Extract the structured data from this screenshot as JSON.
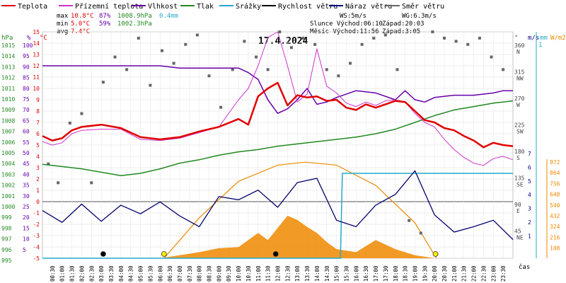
{
  "chart_data": {
    "type": "line",
    "title": "17.4.2024",
    "legend": [
      {
        "name": "Teplota",
        "color": "#e00000"
      },
      {
        "name": "Přízemní teplota",
        "color": "#cc33cc"
      },
      {
        "name": "Vlhkost",
        "color": "#6600aa"
      },
      {
        "name": "Tlak",
        "color": "#228822"
      },
      {
        "name": "Srážky",
        "color": "#22aacc"
      },
      {
        "name": "Rychlost větru",
        "color": "#000000"
      },
      {
        "name": "Náraz větru",
        "color": "#000088"
      },
      {
        "name": "Směr větru",
        "color": "#666666"
      }
    ],
    "stats": {
      "max_label": "max",
      "max_temp": "10.8°C",
      "max_hum": "87%",
      "max_press": "1008.9hPa",
      "rain_total": "0.4mm",
      "min_label": "min",
      "min_temp": "5.0°C",
      "min_hum": "59%",
      "min_press": "1002.3hPa",
      "avg_label": "avg",
      "avg_temp": "7.4°C",
      "ws": "WS:5m/s",
      "wg": "WG:6.3m/s",
      "sun": "Slunce Východ:06:10",
      "sunset": "Západ:20:03",
      "moon": "Měsíc Východ:11:56",
      "moonset": "Západ:3:05"
    },
    "axes": {
      "hpa_label": "hPa",
      "pct_label": "%",
      "degc_label": "°C",
      "deg_label": "°",
      "ms_label": "m/s",
      "mm_label": "mm",
      "wm2_label": "W/m2",
      "x_label": "čas",
      "hpa_ticks": [
        "1015",
        "1014",
        "1013",
        "1012",
        "1011",
        "1010",
        "1009",
        "1008",
        "1007",
        "1006",
        "1005",
        "1004",
        "1003",
        "1002",
        "1001",
        "1000",
        "999",
        "998",
        "997",
        "996",
        "995"
      ],
      "pct_ticks": [
        "100",
        "95",
        "90",
        "85",
        "80",
        "75",
        "70",
        "65",
        "60",
        "55",
        "50",
        "45",
        "40",
        "35",
        "30",
        "25",
        "20",
        "15",
        "10",
        "5"
      ],
      "temp_ticks": [
        "15",
        "14",
        "13",
        "12",
        "11",
        "10",
        "9",
        "8",
        "7",
        "6",
        "5",
        "4",
        "3",
        "2",
        "1",
        "0",
        "-1",
        "-2",
        "-3",
        "-4",
        "-5"
      ],
      "dir_ticks": [
        "360",
        "315",
        "270",
        "225",
        "180",
        "135",
        "90",
        "45"
      ],
      "dir_names": [
        "N",
        "NW",
        "W",
        "SW",
        "S",
        "SE",
        "E",
        "NE"
      ],
      "ms_ticks": [
        "7",
        "6",
        "5",
        "4",
        "3",
        "2",
        "1"
      ],
      "mm_top": "1",
      "wm2_ticks": [
        "972",
        "864",
        "756",
        "648",
        "540",
        "432",
        "324",
        "216",
        "108"
      ],
      "x_ticks": [
        "00:30",
        "01:00",
        "01:30",
        "02:00",
        "02:30",
        "03:00",
        "03:30",
        "04:00",
        "04:30",
        "05:00",
        "05:30",
        "06:00",
        "06:30",
        "07:00",
        "07:30",
        "08:00",
        "08:30",
        "09:00",
        "09:30",
        "10:00",
        "10:30",
        "11:00",
        "11:30",
        "12:00",
        "12:30",
        "13:00",
        "13:30",
        "14:00",
        "14:30",
        "15:00",
        "15:30",
        "16:00",
        "16:30",
        "17:00",
        "17:30",
        "18:00",
        "18:30",
        "19:00",
        "19:30",
        "20:00",
        "20:30",
        "21:00",
        "21:30",
        "22:00",
        "22:30",
        "23:00",
        "23:30"
      ]
    },
    "ylim_temp": [
      -5,
      15
    ],
    "xlim_hours": [
      0,
      24
    ],
    "series": [
      {
        "name": "Teplota",
        "x": [
          0,
          0.5,
          1,
          1.5,
          2,
          3,
          4,
          5,
          6,
          7,
          8,
          9,
          10,
          10.5,
          11,
          11.5,
          12,
          12.5,
          13,
          13.5,
          14,
          14.5,
          15,
          15.5,
          16,
          16.5,
          17,
          17.5,
          18,
          18.5,
          19,
          19.5,
          20,
          20.5,
          21,
          21.5,
          22,
          22.5,
          23,
          23.5,
          24
        ],
        "values": [
          5.8,
          5.4,
          5.6,
          6.3,
          6.6,
          6.8,
          6.5,
          5.7,
          5.5,
          5.7,
          6.2,
          6.6,
          7.3,
          6.8,
          9.3,
          10.0,
          10.5,
          8.5,
          9.4,
          9.2,
          9.3,
          8.9,
          9.0,
          8.3,
          8.1,
          8.6,
          8.3,
          8.6,
          8.9,
          8.8,
          8.0,
          7.2,
          7.0,
          6.5,
          6.3,
          5.8,
          5.4,
          4.8,
          5.2,
          5.0,
          4.9
        ]
      },
      {
        "name": "Přízemní teplota",
        "x": [
          0,
          0.5,
          1,
          1.5,
          2,
          3,
          4,
          5,
          6,
          7,
          8,
          9,
          10,
          10.5,
          11,
          11.5,
          12,
          12.5,
          13,
          13.5,
          14,
          14.5,
          15,
          15.5,
          16,
          16.5,
          17,
          17.5,
          18,
          18.5,
          19,
          19.5,
          20,
          20.5,
          21,
          21.5,
          22,
          22.5,
          23,
          23.5,
          24
        ],
        "values": [
          5.3,
          5.0,
          5.2,
          6.0,
          6.3,
          6.4,
          6.4,
          5.5,
          5.4,
          5.6,
          6.1,
          6.6,
          9.0,
          10.0,
          12.0,
          14.5,
          15.0,
          12.0,
          8.8,
          9.5,
          13.5,
          10.2,
          9.6,
          8.7,
          8.4,
          8.8,
          8.5,
          8.9,
          9.0,
          8.8,
          7.8,
          7.0,
          6.6,
          5.5,
          4.6,
          3.9,
          3.4,
          3.2,
          3.8,
          4.0,
          3.7
        ]
      },
      {
        "name": "Vlhkost",
        "x": [
          0,
          1,
          2,
          3,
          4,
          5,
          6,
          7,
          8,
          9,
          10,
          10.5,
          11,
          11.5,
          12,
          12.5,
          13,
          13.5,
          14,
          14.5,
          15,
          16,
          17,
          18,
          18.5,
          19,
          19.5,
          20,
          21,
          22,
          23,
          23.5,
          24
        ],
        "values": [
          85,
          85,
          85,
          85,
          85,
          85,
          85,
          84,
          84,
          84,
          84,
          82,
          79,
          70,
          64,
          66,
          70,
          75,
          68,
          69,
          71,
          74,
          73,
          70,
          74,
          70,
          69,
          71,
          72,
          72,
          73,
          74,
          74
        ]
      },
      {
        "name": "Tlak",
        "x": [
          0,
          1,
          2,
          3,
          4,
          5,
          6,
          7,
          8,
          9,
          10,
          11,
          12,
          13,
          14,
          15,
          16,
          17,
          18,
          19,
          20,
          21,
          22,
          23,
          24
        ],
        "values": [
          1003.3,
          1003.1,
          1002.9,
          1002.6,
          1002.3,
          1002.5,
          1002.9,
          1003.4,
          1003.7,
          1004.1,
          1004.4,
          1004.6,
          1004.9,
          1005.1,
          1005.3,
          1005.5,
          1005.7,
          1006.0,
          1006.4,
          1007.0,
          1007.6,
          1008.1,
          1008.4,
          1008.7,
          1008.9
        ]
      },
      {
        "name": "Rychlost větru",
        "x": [
          0,
          1,
          2,
          3,
          4,
          5,
          6,
          7,
          8,
          9,
          10,
          11,
          12,
          13,
          14,
          15,
          16,
          17,
          18,
          19,
          20,
          21,
          22,
          23,
          24
        ],
        "values": [
          -1.5,
          -2.3,
          -1.2,
          -2.6,
          -1.4,
          -2.1,
          -1.1,
          -2.4,
          -2.8,
          -1.8,
          -1.3,
          -0.9,
          -1.5,
          -0.8,
          -0.5,
          -2.2,
          -2.8,
          -1.8,
          -1.2,
          -0.7,
          -2.5,
          -3.1,
          -2.6,
          -2.3,
          -3.4
        ]
      },
      {
        "name": "Náraz větru",
        "x": [
          0,
          1,
          2,
          3,
          4,
          5,
          6,
          7,
          8,
          9,
          10,
          11,
          12,
          13,
          14,
          15,
          16,
          17,
          18,
          19,
          20,
          21,
          22,
          23,
          24
        ],
        "values": [
          -0.5,
          -1.6,
          0.1,
          -1.5,
          0.0,
          -0.8,
          0.3,
          -1.0,
          -2.0,
          0.8,
          0.5,
          1.4,
          -0.2,
          2.1,
          2.5,
          -1.4,
          -2.0,
          0.0,
          1.0,
          3.2,
          -0.9,
          -2.5,
          -2.0,
          -1.4,
          -3.2
        ]
      },
      {
        "name": "Srážky",
        "x": [
          0,
          15.2,
          15.3,
          24
        ],
        "values": [
          0,
          0,
          0.4,
          0.4
        ]
      },
      {
        "name": "Směr větru",
        "x": [
          0.3,
          0.8,
          1.4,
          2.0,
          2.5,
          3.1,
          3.7,
          4.3,
          4.9,
          5.5,
          6.1,
          6.7,
          7.3,
          7.9,
          8.5,
          9.1,
          9.7,
          10.3,
          10.9,
          11.5,
          12.1,
          12.7,
          13.3,
          13.9,
          14.5,
          15.1,
          15.7,
          16.3,
          16.9,
          17.5,
          18.1,
          18.7,
          19.3,
          19.9,
          20.5,
          21.1,
          21.7,
          22.3,
          22.9,
          23.5
        ],
        "values": [
          150,
          120,
          215,
          230,
          120,
          280,
          320,
          300,
          350,
          275,
          330,
          310,
          340,
          355,
          290,
          240,
          300,
          345,
          320,
          300,
          360,
          335,
          350,
          340,
          300,
          290,
          310,
          340,
          350,
          355,
          300,
          60,
          40,
          360,
          350,
          345,
          340,
          350,
          320,
          300
        ]
      }
    ],
    "radiation": {
      "x": [
        0,
        6,
        8,
        9,
        10,
        11,
        11.5,
        12,
        12.5,
        13,
        13.5,
        14,
        14.5,
        15,
        16,
        17,
        18,
        19,
        20,
        24
      ],
      "values": [
        0,
        0,
        60,
        100,
        110,
        250,
        180,
        300,
        420,
        380,
        310,
        250,
        160,
        90,
        60,
        180,
        90,
        30,
        0,
        0
      ]
    },
    "solar_curve": {
      "x": [
        6.2,
        8,
        10,
        12,
        13.4,
        15,
        17,
        19,
        20.1
      ],
      "values": [
        0,
        400,
        760,
        920,
        950,
        920,
        720,
        350,
        0
      ]
    }
  }
}
